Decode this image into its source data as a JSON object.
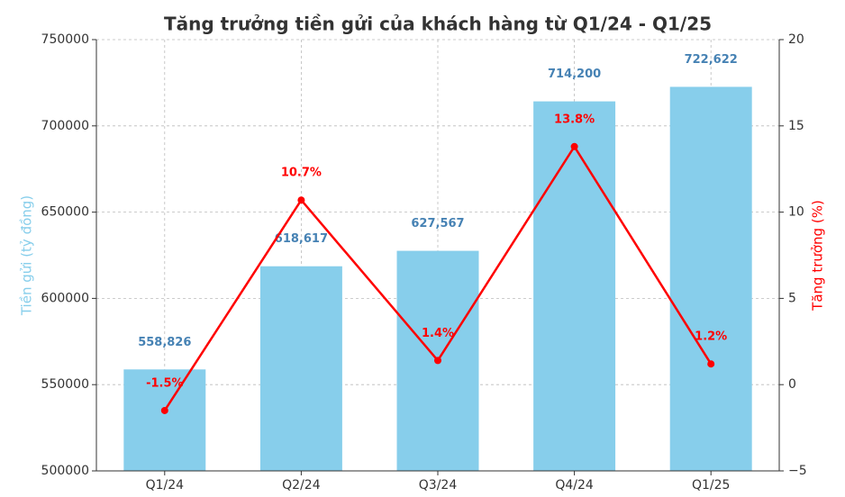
{
  "chart_data": {
    "type": "bar",
    "title": "Tăng trưởng tiền gửi của khách hàng từ Q1/24 - Q1/25",
    "categories": [
      "Q1/24",
      "Q2/24",
      "Q3/24",
      "Q4/24",
      "Q1/25"
    ],
    "ylabel": "Tiền gửi (tỷ đồng)",
    "y2label": "Tăng trưởng (%)",
    "series": [
      {
        "type": "bar",
        "color": "#87ceeb",
        "label_color": "#4682b4",
        "values": [
          558826,
          618617,
          627567,
          714200,
          722622
        ],
        "value_labels": [
          "558,826",
          "618,617",
          "627,567",
          "714,200",
          "722,622"
        ]
      },
      {
        "type": "line",
        "axis": "y2",
        "color": "#ff0000",
        "label_color": "#ff0000",
        "values": [
          -1.5,
          10.7,
          1.4,
          13.8,
          1.2
        ],
        "value_labels": [
          "-1.5%",
          "10.7%",
          "1.4%",
          "13.8%",
          "1.2%"
        ]
      }
    ],
    "ylim": [
      500000,
      750000
    ],
    "yticks": [
      500000,
      550000,
      600000,
      650000,
      700000,
      750000
    ],
    "y2lim": [
      -5,
      20
    ],
    "y2ticks": [
      {
        "value": -5,
        "label": "−5"
      },
      0,
      5,
      10,
      15,
      20
    ],
    "grid": true
  }
}
